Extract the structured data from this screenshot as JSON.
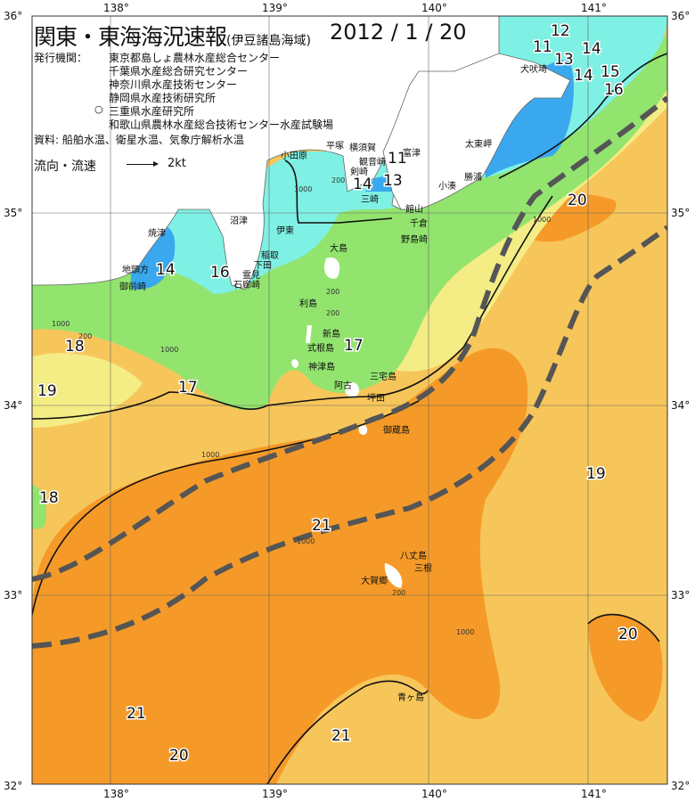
{
  "header": {
    "title": "関東・東海海況速報",
    "subtitle": "(伊豆諸島海域)",
    "date": "2012 / 1 / 20",
    "issuer_label": "発行機関：",
    "issuers": [
      "東京都島しょ農林水産総合センター",
      "千葉県水産総合研究センター",
      "神奈川県水産技術センター",
      "静岡県水産技術研究所",
      "三重県水産研究所",
      "和歌山県農林水産総合技術センター水産試験場"
    ],
    "issuer_marker": "○",
    "source": "資料: 船舶水温、衛星水温、気象庁解析水温",
    "legend_label": "流向・流速",
    "legend_speed": "2kt"
  },
  "axes": {
    "lon_top": [
      "138°",
      "139°",
      "140°",
      "141°"
    ],
    "lon_bottom": [
      "138°",
      "139°",
      "140°",
      "141°"
    ],
    "lat_left": [
      "36°",
      "35°",
      "34°",
      "33°",
      "32°"
    ],
    "lat_right": [
      "36°",
      "35°",
      "34°",
      "33°",
      "32°"
    ]
  },
  "places": [
    "小田原",
    "平塚",
    "横須賀",
    "観音崎",
    "富津",
    "剣崎",
    "三崎",
    "館山",
    "千倉",
    "野島崎",
    "小湊",
    "勝浦",
    "太東岬",
    "犬吠埼",
    "伊東",
    "稲取",
    "下田",
    "霊見",
    "石廊崎",
    "沼津",
    "焼津",
    "地頭方",
    "御前崎",
    "大島",
    "利島",
    "新島",
    "式根島",
    "神津島",
    "三宅島",
    "阿古",
    "坪田",
    "御蔵島",
    "八丈島",
    "三根",
    "大賀郷",
    "青ヶ島"
  ],
  "temperatures": [
    "11",
    "12",
    "13",
    "14",
    "14",
    "15",
    "16",
    "11",
    "13",
    "14",
    "14",
    "16",
    "17",
    "18",
    "19",
    "17",
    "18",
    "19",
    "20",
    "20",
    "21",
    "21",
    "21",
    "20"
  ],
  "isobaths": [
    "200",
    "1000",
    "200",
    "1000",
    "200",
    "200",
    "1000",
    "1000",
    "1000",
    "1000",
    "1000",
    "200"
  ],
  "colors": {
    "blue": "#3aa8ee",
    "cyan": "#7ff0e4",
    "green": "#92e46e",
    "yellow": "#f4ec84",
    "light_orange": "#f7c65a",
    "orange": "#f59a28",
    "land": "#ffffff",
    "kuroshio": "#555555"
  }
}
